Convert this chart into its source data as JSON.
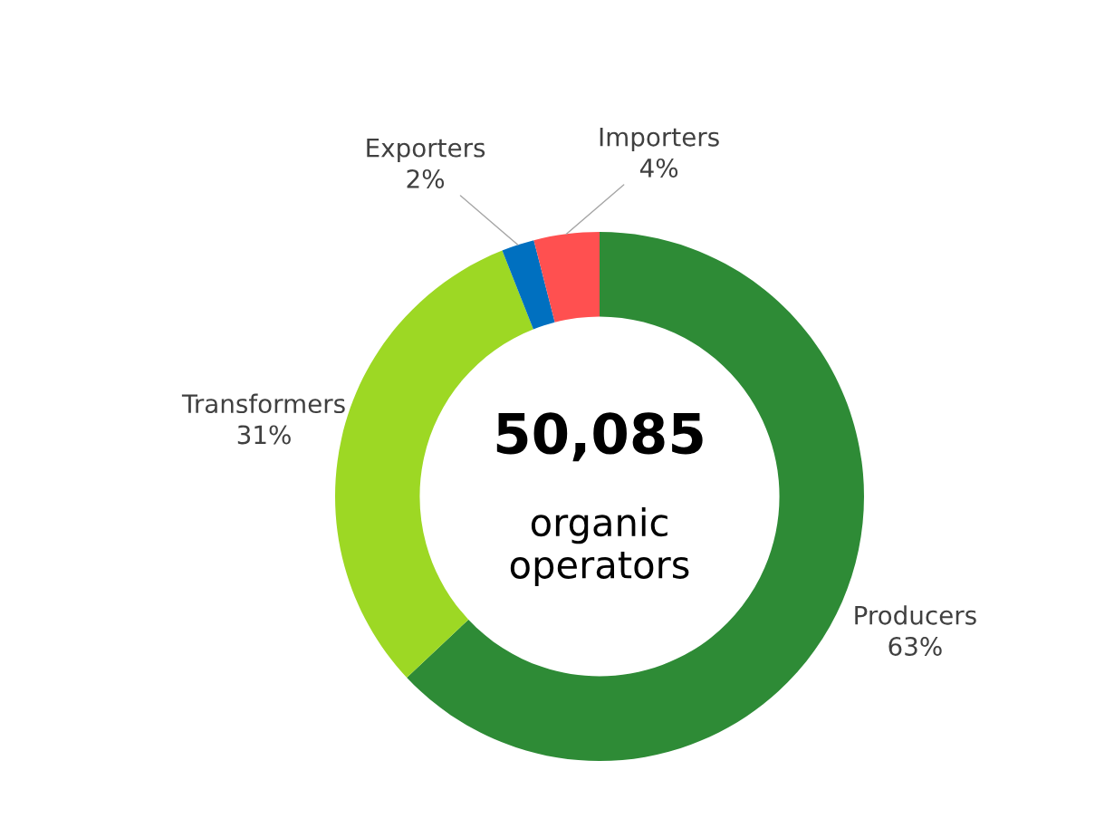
{
  "chart_data": {
    "type": "donut",
    "categories": [
      "Producers",
      "Transformers",
      "Exporters",
      "Importers"
    ],
    "values": [
      63,
      31,
      2,
      4
    ],
    "value_labels": [
      "63%",
      "31%",
      "2%",
      "4%"
    ],
    "colors": [
      "#2e8b36",
      "#9dd824",
      "#0070c0",
      "#ff5050"
    ],
    "annotations": [
      "50,085",
      "organic\noperators"
    ],
    "legend": false
  }
}
